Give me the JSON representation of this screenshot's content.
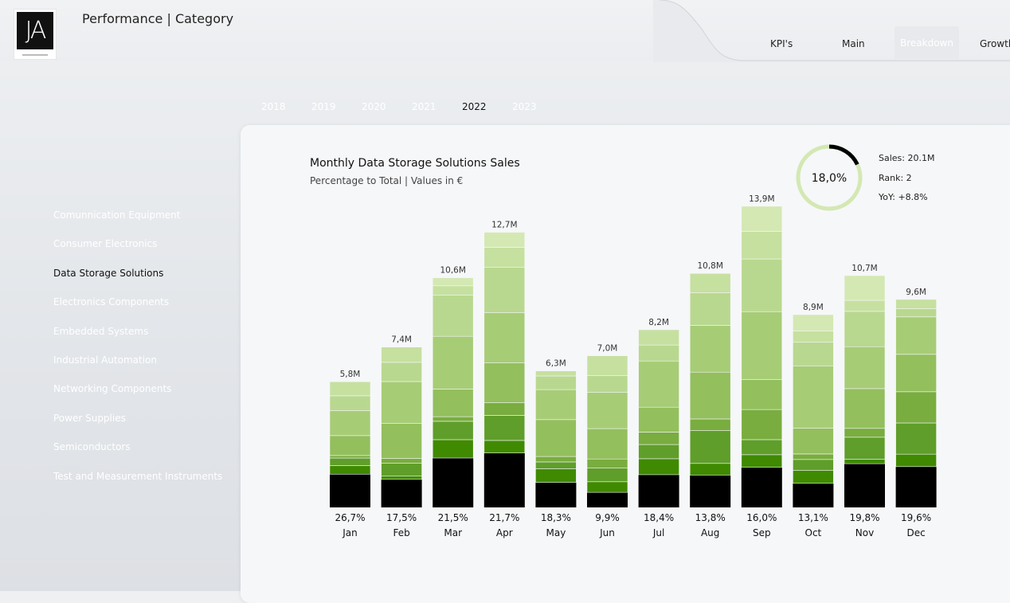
{
  "header": {
    "title": "Performance | Category",
    "logo_text": "JA"
  },
  "nav": {
    "tabs": [
      {
        "label": "KPI's",
        "active": false
      },
      {
        "label": "Main",
        "active": false
      },
      {
        "label": "Breakdown",
        "active": true
      },
      {
        "label": "Growth",
        "active": false
      }
    ]
  },
  "years": {
    "items": [
      "2018",
      "2019",
      "2020",
      "2021",
      "2022",
      "2023"
    ],
    "selected": "2022"
  },
  "categories": {
    "items": [
      "Comunnication Equipment",
      "Consumer Electronics",
      "Data Storage Solutions",
      "Electronics Components",
      "Embedded Systems",
      "Industrial Automation",
      "Networking Components",
      "Power Supplies",
      "Semiconductors",
      "Test and Measurement Instruments"
    ],
    "selected": "Data Storage Solutions"
  },
  "chart": {
    "title": "Monthly Data Storage Solutions Sales",
    "subtitle": "Percentage to Total | Values in €"
  },
  "kpi": {
    "ring_value": "18,0%",
    "ring_fraction": 0.18,
    "sales": "Sales: 20.1M",
    "rank": "Rank: 2",
    "yoy": "YoY: +8.8%"
  },
  "chart_data": {
    "type": "bar",
    "stacked": true,
    "categories": [
      "Jan",
      "Feb",
      "Mar",
      "Apr",
      "May",
      "Jun",
      "Jul",
      "Aug",
      "Sep",
      "Oct",
      "Nov",
      "Dec"
    ],
    "totals": [
      5.8,
      7.4,
      10.6,
      12.7,
      6.3,
      7.0,
      8.2,
      10.8,
      13.9,
      8.9,
      10.7,
      9.6
    ],
    "total_labels": [
      "5,8M",
      "7,4M",
      "10,6M",
      "12,7M",
      "6,3M",
      "7,0M",
      "8,2M",
      "10,8M",
      "13,9M",
      "8,9M",
      "10,7M",
      "9,6M"
    ],
    "percent_labels": [
      "26,7%",
      "17,5%",
      "21,5%",
      "21,7%",
      "18,3%",
      "9,9%",
      "18,4%",
      "13,8%",
      "16,0%",
      "13,1%",
      "19,8%",
      "19,6%"
    ],
    "highlight_share": [
      0.267,
      0.175,
      0.215,
      0.217,
      0.183,
      0.099,
      0.184,
      0.138,
      0.16,
      0.131,
      0.198,
      0.196
    ],
    "segment_shares": [
      [
        0.267,
        0.07,
        0.06,
        0.02,
        0.16,
        0.2,
        0.12,
        0.113
      ],
      [
        0.175,
        0.02,
        0.08,
        0.03,
        0.22,
        0.26,
        0.12,
        0.095
      ],
      [
        0.215,
        0.08,
        0.08,
        0.02,
        0.12,
        0.23,
        0.18,
        0.04,
        0.035
      ],
      [
        0.217,
        0.05,
        0.1,
        0.05,
        0.16,
        0.2,
        0.18,
        0.08,
        0.06
      ],
      [
        0.183,
        0.1,
        0.05,
        0.04,
        0.27,
        0.22,
        0.1,
        0.037
      ],
      [
        0.099,
        0.07,
        0.09,
        0.06,
        0.2,
        0.24,
        0.11,
        0.13
      ],
      [
        0.184,
        0.09,
        0.08,
        0.07,
        0.14,
        0.26,
        0.09,
        0.086
      ],
      [
        0.138,
        0.05,
        0.14,
        0.05,
        0.2,
        0.2,
        0.14,
        0.082
      ],
      [
        0.16,
        0.05,
        0.06,
        0.12,
        0.12,
        0.27,
        0.21,
        0.11,
        0.1
      ],
      [
        0.131,
        0.07,
        0.06,
        0.03,
        0.14,
        0.34,
        0.13,
        0.06,
        0.089
      ],
      [
        0.198,
        0.02,
        0.1,
        0.04,
        0.18,
        0.19,
        0.16,
        0.05,
        0.112
      ],
      [
        0.196,
        0.06,
        0.15,
        0.15,
        0.18,
        0.18,
        0.04,
        0.044
      ]
    ],
    "colors": [
      "#000000",
      "#3f8a00",
      "#5f9e2a",
      "#79ad3f",
      "#93bf5d",
      "#a7cc76",
      "#b9d88f",
      "#c6e0a0",
      "#d4e8b3"
    ],
    "ylim": [
      0,
      14.5
    ],
    "legend": "none",
    "grid": false
  }
}
